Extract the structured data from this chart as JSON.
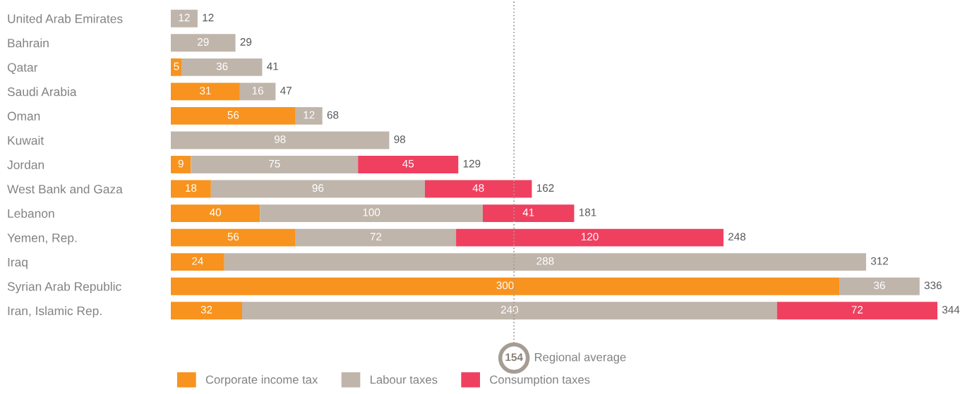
{
  "chart_data": {
    "type": "bar",
    "orientation": "horizontal",
    "stacked": true,
    "data_labels": true,
    "grid": false,
    "legend": "bottom left",
    "tick_labels": "y",
    "annotations": [
      {
        "text": "154",
        "x": 154
      }
    ],
    "categories": [
      "United Arab Emirates",
      "Bahrain",
      "Qatar",
      "Saudi Arabia",
      "Oman",
      "Kuwait",
      "Jordan",
      "West Bank and Gaza",
      "Lebanon",
      "Yemen, Rep.",
      "Iraq",
      "Syrian Arab Republic",
      "Iran, Islamic Rep."
    ],
    "series": [
      {
        "name": "Corporate income tax",
        "color": "#f7931e",
        "values": [
          null,
          null,
          5,
          31,
          56,
          null,
          9,
          18,
          40,
          56,
          24,
          300,
          32
        ]
      },
      {
        "name": "Labour taxes",
        "color": "#bfb5ab",
        "values": [
          12,
          29,
          36,
          16,
          12,
          98,
          75,
          96,
          100,
          72,
          288,
          36,
          240
        ]
      },
      {
        "name": "Consumption taxes",
        "color": "#ef4060",
        "values": [
          null,
          null,
          null,
          null,
          null,
          null,
          45,
          48,
          41,
          120,
          null,
          null,
          72
        ]
      }
    ],
    "totals": [
      "12",
      "29",
      "41",
      "47",
      "68",
      "98",
      "129",
      "162",
      "181",
      "248",
      "312",
      "336",
      "344"
    ],
    "ref_lines": [
      {
        "axis": "x",
        "value": 154,
        "label": "Regional average",
        "color": "#a59c94",
        "line_style": "dotted"
      }
    ]
  }
}
